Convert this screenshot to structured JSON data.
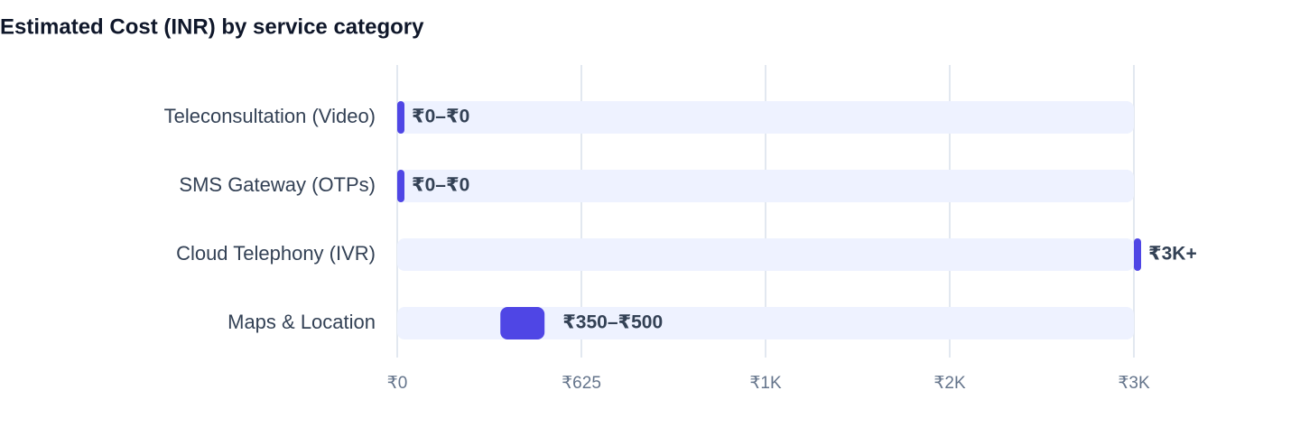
{
  "chart_data": {
    "type": "range-bar",
    "title": "Estimated Cost (INR) by service category",
    "categories": [
      "Teleconsultation (Video)",
      "SMS Gateway (OTPs)",
      "Cloud Telephony (IVR)",
      "Maps & Location"
    ],
    "low": [
      0,
      0,
      2500,
      350
    ],
    "high": [
      0,
      0,
      2500,
      500
    ],
    "value_labels": [
      "₹0–₹0",
      "₹0–₹0",
      "₹3K+",
      "₹350–₹500"
    ],
    "color": "#4f46e5",
    "track_color": "#eef2ff",
    "xlim": [
      0,
      2500
    ],
    "xticks": [
      {
        "value": 0,
        "label": "₹0"
      },
      {
        "value": 625,
        "label": "₹625"
      },
      {
        "value": 1250,
        "label": "₹1K"
      },
      {
        "value": 1875,
        "label": "₹2K"
      },
      {
        "value": 2500,
        "label": "₹3K"
      }
    ],
    "grid": true
  }
}
